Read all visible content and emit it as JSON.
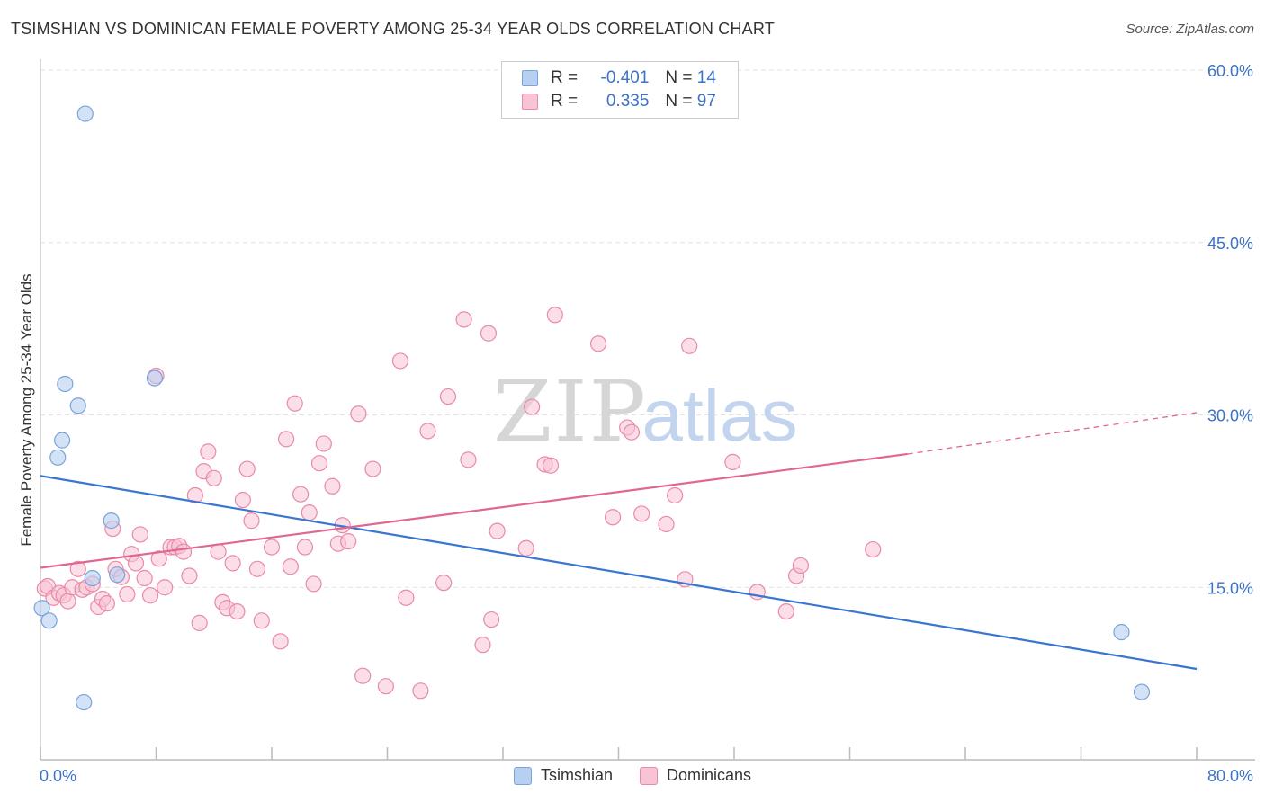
{
  "header": {
    "title": "TSIMSHIAN VS DOMINICAN FEMALE POVERTY AMONG 25-34 YEAR OLDS CORRELATION CHART",
    "source": "Source: ZipAtlas.com"
  },
  "watermark": {
    "zip": "ZIP",
    "atlas": "atlas"
  },
  "legend": {
    "r_label": "R =",
    "n_label": "N =",
    "rows": [
      {
        "r": "-0.401",
        "n": "14"
      },
      {
        "r": "0.335",
        "n": "97"
      }
    ]
  },
  "colors": {
    "tsimshian_fill": "#b7cff0",
    "tsimshian_stroke": "#7aa3dd",
    "tsimshian_line": "#3a75d0",
    "dominican_fill": "#f8c3d4",
    "dominican_stroke": "#e98aa8",
    "dominican_line": "#e06694",
    "axis_label": "#3c72c8"
  },
  "chart_data": {
    "type": "scatter",
    "title": "TSIMSHIAN VS DOMINICAN FEMALE POVERTY AMONG 25-34 YEAR OLDS CORRELATION CHART",
    "xlabel": "",
    "ylabel": "Female Poverty Among 25-34 Year Olds",
    "xlim": [
      0,
      80
    ],
    "ylim": [
      0,
      60
    ],
    "x_tick_labels": [
      "0.0%",
      "80.0%"
    ],
    "y_ticks": [
      15,
      30,
      45,
      60
    ],
    "y_tick_labels": [
      "15.0%",
      "30.0%",
      "45.0%",
      "60.0%"
    ],
    "grid": true,
    "series": [
      {
        "name": "Tsimshian",
        "r": -0.401,
        "n": 14,
        "trend": {
          "x0": 0,
          "y0": 24.7,
          "x1": 80,
          "y1": 7.9
        },
        "points": [
          [
            0.1,
            13.2
          ],
          [
            0.6,
            12.1
          ],
          [
            1.2,
            26.3
          ],
          [
            1.5,
            27.8
          ],
          [
            1.7,
            32.7
          ],
          [
            2.6,
            30.8
          ],
          [
            3.1,
            56.2
          ],
          [
            3.0,
            5.0
          ],
          [
            3.6,
            15.8
          ],
          [
            4.9,
            20.8
          ],
          [
            5.3,
            16.1
          ],
          [
            7.9,
            33.2
          ],
          [
            74.8,
            11.1
          ],
          [
            76.2,
            5.9
          ]
        ]
      },
      {
        "name": "Dominicans",
        "r": 0.335,
        "n": 97,
        "trend": {
          "x0": 0,
          "y0": 16.7,
          "x1": 60.0,
          "y1": 26.6,
          "dash_x1": 80,
          "dash_y1": 30.2
        },
        "points": [
          [
            0.3,
            14.9
          ],
          [
            0.5,
            15.1
          ],
          [
            0.9,
            14.1
          ],
          [
            1.3,
            14.5
          ],
          [
            1.6,
            14.3
          ],
          [
            1.9,
            13.8
          ],
          [
            2.2,
            15.0
          ],
          [
            2.6,
            16.6
          ],
          [
            2.9,
            14.8
          ],
          [
            3.2,
            15.0
          ],
          [
            3.6,
            15.3
          ],
          [
            4.0,
            13.3
          ],
          [
            4.3,
            14.0
          ],
          [
            4.6,
            13.6
          ],
          [
            5.0,
            20.1
          ],
          [
            5.2,
            16.6
          ],
          [
            5.6,
            15.9
          ],
          [
            6.0,
            14.4
          ],
          [
            6.3,
            17.9
          ],
          [
            6.6,
            17.1
          ],
          [
            6.9,
            19.6
          ],
          [
            7.2,
            15.8
          ],
          [
            7.6,
            14.3
          ],
          [
            8.0,
            33.4
          ],
          [
            8.2,
            17.5
          ],
          [
            8.6,
            15.0
          ],
          [
            9.0,
            18.5
          ],
          [
            9.3,
            18.5
          ],
          [
            9.6,
            18.6
          ],
          [
            9.9,
            18.1
          ],
          [
            10.3,
            16.0
          ],
          [
            10.7,
            23.0
          ],
          [
            11.0,
            11.9
          ],
          [
            11.3,
            25.1
          ],
          [
            11.6,
            26.8
          ],
          [
            12.0,
            24.5
          ],
          [
            12.3,
            18.1
          ],
          [
            12.6,
            13.7
          ],
          [
            12.9,
            13.2
          ],
          [
            13.3,
            17.1
          ],
          [
            13.6,
            12.9
          ],
          [
            14.0,
            22.6
          ],
          [
            14.3,
            25.3
          ],
          [
            14.6,
            20.8
          ],
          [
            15.0,
            16.6
          ],
          [
            15.3,
            12.1
          ],
          [
            16.0,
            18.5
          ],
          [
            16.6,
            10.3
          ],
          [
            17.0,
            27.9
          ],
          [
            17.3,
            16.8
          ],
          [
            17.6,
            31.0
          ],
          [
            18.0,
            23.1
          ],
          [
            18.3,
            18.5
          ],
          [
            18.6,
            21.5
          ],
          [
            18.9,
            15.3
          ],
          [
            19.3,
            25.8
          ],
          [
            19.6,
            27.5
          ],
          [
            20.2,
            23.8
          ],
          [
            20.6,
            18.8
          ],
          [
            20.9,
            20.4
          ],
          [
            21.3,
            19.0
          ],
          [
            22.0,
            30.1
          ],
          [
            22.3,
            7.3
          ],
          [
            23.0,
            25.3
          ],
          [
            23.9,
            6.4
          ],
          [
            24.9,
            34.7
          ],
          [
            25.3,
            14.1
          ],
          [
            26.3,
            6.0
          ],
          [
            26.8,
            28.6
          ],
          [
            27.9,
            15.4
          ],
          [
            28.2,
            31.6
          ],
          [
            29.3,
            38.3
          ],
          [
            29.6,
            26.1
          ],
          [
            30.6,
            10.0
          ],
          [
            31.0,
            37.1
          ],
          [
            31.2,
            12.2
          ],
          [
            31.6,
            19.9
          ],
          [
            33.6,
            18.4
          ],
          [
            34.0,
            30.7
          ],
          [
            34.9,
            25.7
          ],
          [
            35.3,
            25.6
          ],
          [
            35.6,
            38.7
          ],
          [
            38.6,
            36.2
          ],
          [
            39.6,
            21.1
          ],
          [
            40.6,
            28.9
          ],
          [
            40.9,
            28.5
          ],
          [
            41.6,
            21.4
          ],
          [
            43.3,
            20.5
          ],
          [
            43.9,
            23.0
          ],
          [
            44.6,
            15.7
          ],
          [
            44.9,
            36.0
          ],
          [
            47.9,
            25.9
          ],
          [
            49.6,
            14.6
          ],
          [
            51.6,
            12.9
          ],
          [
            52.3,
            16.0
          ],
          [
            52.6,
            16.9
          ],
          [
            57.6,
            18.3
          ]
        ]
      }
    ]
  },
  "bottom_legend": [
    "Tsimshian",
    "Dominicans"
  ]
}
